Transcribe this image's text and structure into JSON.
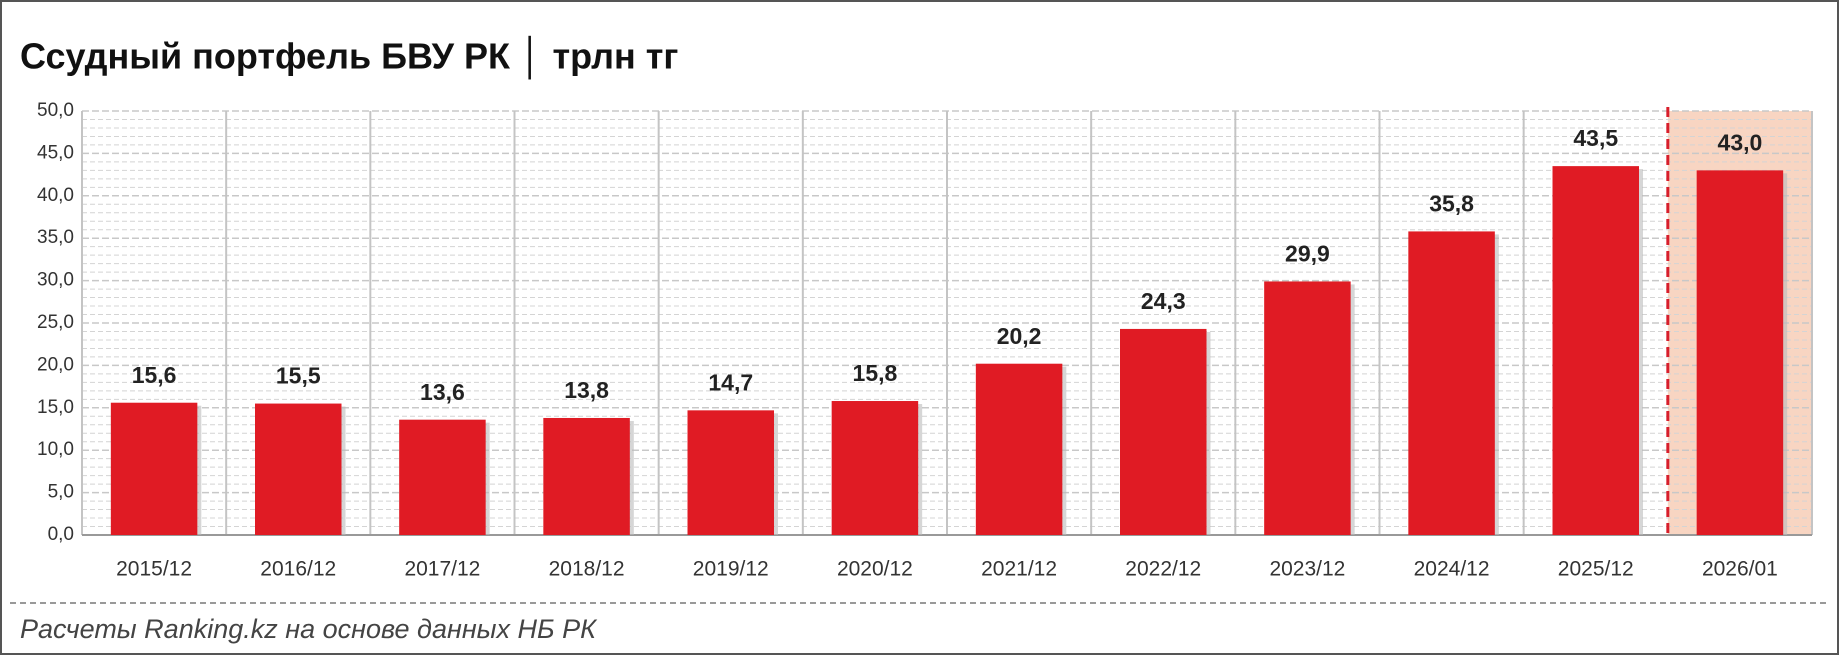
{
  "chart_data": {
    "type": "bar",
    "title": "Ссудный портфель БВУ РК │ трлн тг",
    "categories": [
      "2015/12",
      "2016/12",
      "2017/12",
      "2018/12",
      "2019/12",
      "2020/12",
      "2021/12",
      "2022/12",
      "2023/12",
      "2024/12",
      "2025/12",
      "2026/01"
    ],
    "values": [
      15.6,
      15.5,
      13.6,
      13.8,
      14.7,
      15.8,
      20.2,
      24.3,
      29.9,
      35.8,
      43.5,
      43.0
    ],
    "value_labels": [
      "15,6",
      "15,5",
      "13,6",
      "13,8",
      "14,7",
      "15,8",
      "20,2",
      "24,3",
      "29,9",
      "35,8",
      "43,5",
      "43,0"
    ],
    "color": "#e01b24",
    "highlight_index": 11,
    "highlight_color": "#f8d5c2",
    "ylim": [
      0,
      50
    ],
    "yticks": [
      {
        "value": 0,
        "label": "0,0"
      },
      {
        "value": 5,
        "label": "5,0"
      },
      {
        "value": 10,
        "label": "10,0"
      },
      {
        "value": 15,
        "label": "15,0"
      },
      {
        "value": 20,
        "label": "20,0"
      },
      {
        "value": 25,
        "label": "25,0"
      },
      {
        "value": 30,
        "label": "30,0"
      },
      {
        "value": 35,
        "label": "35,0"
      },
      {
        "value": 40,
        "label": "40,0"
      },
      {
        "value": 45,
        "label": "45,0"
      },
      {
        "value": 50,
        "label": "50,0"
      }
    ],
    "grid": true,
    "source": "Расчеты Ranking.kz на основе данных НБ РК"
  }
}
